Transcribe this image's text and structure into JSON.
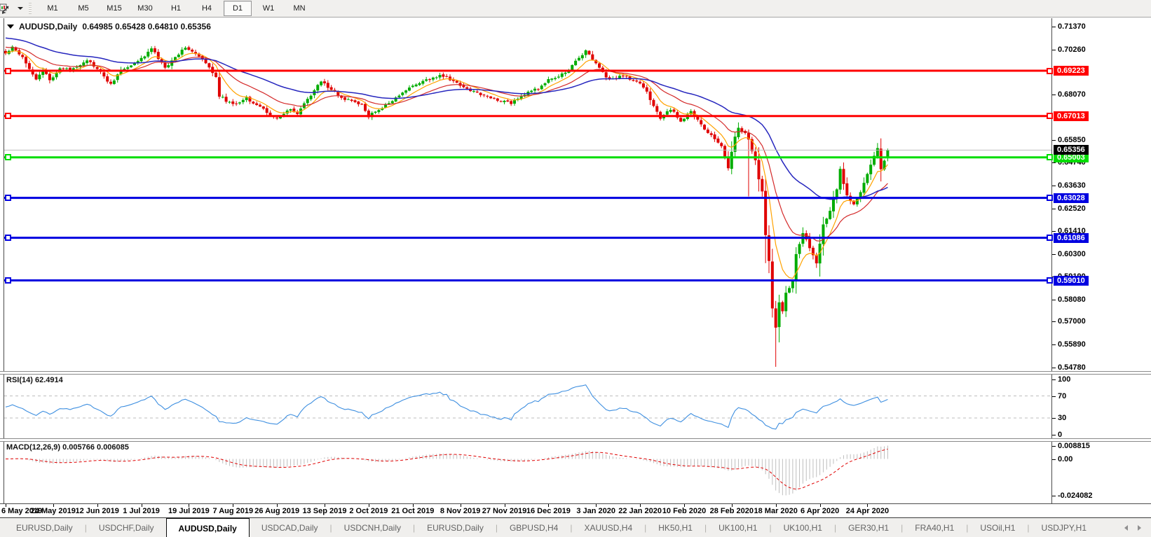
{
  "toolbar": {
    "chart_icon": "chart-profile-icon",
    "timeframes": [
      "M1",
      "M5",
      "M15",
      "M30",
      "H1",
      "H4",
      "D1",
      "W1",
      "MN"
    ],
    "active_timeframe": "D1"
  },
  "chart": {
    "title": "AUDUSD,Daily",
    "ohlc_text": "0.64985 0.65428 0.64810 0.65356"
  },
  "rsi": {
    "label": "RSI(14) 62.4914",
    "period": 14,
    "value": 62.4914,
    "axis_ticks": [
      100,
      70,
      30,
      0
    ],
    "levels": [
      70,
      30
    ],
    "color": "#3E8FE0"
  },
  "macd": {
    "label": "MACD(12,26,9) 0.005766 0.006085",
    "fast": 12,
    "slow": 26,
    "signal": 9,
    "macd_value": 0.005766,
    "signal_value": 0.006085,
    "axis_ticks": [
      0.008815,
      0.0,
      -0.024082
    ],
    "hist_color": "#BEBEBE",
    "signal_color": "#E00000"
  },
  "tabs": {
    "items": [
      "EURUSD,Daily",
      "USDCHF,Daily",
      "AUDUSD,Daily",
      "USDCAD,Daily",
      "USDCNH,Daily",
      "EURUSD,Daily",
      "GBPUSD,H4",
      "XAUUSD,H4",
      "HK50,H1",
      "UK100,H1",
      "UK100,H1",
      "GER30,H1",
      "FRA40,H1",
      "USOil,H1",
      "USDJPY,H1"
    ],
    "active_index": 2
  },
  "chart_data": {
    "type": "candlestick",
    "symbol": "AUDUSD",
    "timeframe": "Daily",
    "last_bar": {
      "open": 0.64985,
      "high": 0.65428,
      "low": 0.6481,
      "close": 0.65356
    },
    "current_price": 0.65356,
    "n_bars": 261,
    "candle_colors": {
      "up": "#00AC00",
      "down": "#E00000"
    },
    "y_ticks": [
      0.7137,
      0.7026,
      0.6807,
      0.6585,
      0.6474,
      0.6363,
      0.6252,
      0.6141,
      0.603,
      0.5919,
      0.5808,
      0.57,
      0.5589,
      0.5478
    ],
    "ylim": [
      0.54555,
      0.71642
    ],
    "x_labels": [
      "6 May 2019",
      "24 May 2019",
      "12 Jun 2019",
      "1 Jul 2019",
      "19 Jul 2019",
      "7 Aug 2019",
      "26 Aug 2019",
      "13 Sep 2019",
      "2 Oct 2019",
      "21 Oct 2019",
      "8 Nov 2019",
      "27 Nov 2019",
      "16 Dec 2019",
      "3 Jan 2020",
      "22 Jan 2020",
      "10 Feb 2020",
      "28 Feb 2020",
      "18 Mar 2020",
      "6 Apr 2020",
      "24 Apr 2020"
    ],
    "x_label_indices": [
      0,
      14,
      27,
      40,
      54,
      67,
      80,
      94,
      107,
      120,
      134,
      147,
      160,
      174,
      187,
      200,
      214,
      227,
      240,
      254
    ],
    "horizontal_lines": [
      {
        "price": 0.69223,
        "color": "#FF0000"
      },
      {
        "price": 0.67013,
        "color": "#FF0000"
      },
      {
        "price": 0.65003,
        "color": "#00DD00"
      },
      {
        "price": 0.63028,
        "color": "#0000E0"
      },
      {
        "price": 0.61086,
        "color": "#0000E0"
      },
      {
        "price": 0.5901,
        "color": "#0000E0"
      }
    ],
    "current_price_line": {
      "price": 0.65356,
      "line_color": "#BBBBBB",
      "label_bg": "#000000"
    },
    "moving_averages": [
      {
        "period": 8,
        "color": "#FFA200",
        "seed": 0.701,
        "width": 1.2
      },
      {
        "period": 20,
        "color": "#D42B2B",
        "seed": 0.704,
        "width": 1.2
      },
      {
        "period": 48,
        "color": "#2626BE",
        "seed": 0.7085,
        "width": 1.5
      }
    ],
    "close_anchors": [
      [
        0,
        0.7005
      ],
      [
        2,
        0.704
      ],
      [
        5,
        0.699
      ],
      [
        9,
        0.688
      ],
      [
        11,
        0.6925
      ],
      [
        13,
        0.6875
      ],
      [
        16,
        0.6935
      ],
      [
        19,
        0.6925
      ],
      [
        24,
        0.6975
      ],
      [
        27,
        0.693
      ],
      [
        31,
        0.6855
      ],
      [
        34,
        0.6925
      ],
      [
        39,
        0.6965
      ],
      [
        43,
        0.703
      ],
      [
        47,
        0.6935
      ],
      [
        53,
        0.704
      ],
      [
        58,
        0.6975
      ],
      [
        62,
        0.6895
      ],
      [
        63,
        0.68
      ],
      [
        67,
        0.6755
      ],
      [
        71,
        0.679
      ],
      [
        75,
        0.6745
      ],
      [
        80,
        0.6685
      ],
      [
        84,
        0.6735
      ],
      [
        86,
        0.6715
      ],
      [
        93,
        0.687
      ],
      [
        99,
        0.679
      ],
      [
        105,
        0.6755
      ],
      [
        107,
        0.67
      ],
      [
        114,
        0.6775
      ],
      [
        120,
        0.685
      ],
      [
        128,
        0.69
      ],
      [
        130,
        0.689
      ],
      [
        134,
        0.685
      ],
      [
        138,
        0.682
      ],
      [
        143,
        0.679
      ],
      [
        149,
        0.6765
      ],
      [
        152,
        0.68
      ],
      [
        158,
        0.6845
      ],
      [
        160,
        0.6875
      ],
      [
        165,
        0.691
      ],
      [
        171,
        0.702
      ],
      [
        172,
        0.7
      ],
      [
        178,
        0.6875
      ],
      [
        182,
        0.69
      ],
      [
        188,
        0.6845
      ],
      [
        193,
        0.669
      ],
      [
        196,
        0.6735
      ],
      [
        199,
        0.668
      ],
      [
        202,
        0.672
      ],
      [
        207,
        0.662
      ],
      [
        211,
        0.656
      ],
      [
        213,
        0.645
      ],
      [
        215,
        0.66
      ],
      [
        216,
        0.6645
      ],
      [
        218,
        0.662
      ],
      [
        219,
        0.6585
      ],
      [
        221,
        0.6485
      ],
      [
        222,
        0.639
      ],
      [
        223,
        0.634
      ],
      [
        224,
        0.612
      ],
      [
        225,
        0.599
      ],
      [
        226,
        0.577
      ],
      [
        227,
        0.5665
      ],
      [
        228,
        0.58
      ],
      [
        229,
        0.575
      ],
      [
        230,
        0.5835
      ],
      [
        232,
        0.59
      ],
      [
        233,
        0.603
      ],
      [
        235,
        0.6135
      ],
      [
        237,
        0.606
      ],
      [
        239,
        0.599
      ],
      [
        241,
        0.617
      ],
      [
        243,
        0.6235
      ],
      [
        245,
        0.635
      ],
      [
        246,
        0.644
      ],
      [
        248,
        0.631
      ],
      [
        250,
        0.6265
      ],
      [
        253,
        0.637
      ],
      [
        256,
        0.651
      ],
      [
        257,
        0.654
      ],
      [
        258,
        0.6445
      ],
      [
        259,
        0.648
      ],
      [
        260,
        0.65356
      ]
    ],
    "bar_overrides": [
      {
        "i": 219,
        "low": 0.631
      },
      {
        "i": 227,
        "low": 0.548
      },
      {
        "i": 257,
        "high": 0.657
      },
      {
        "i": 260,
        "open": 0.64985,
        "high": 0.65428,
        "low": 0.6481,
        "close": 0.65356
      }
    ]
  }
}
